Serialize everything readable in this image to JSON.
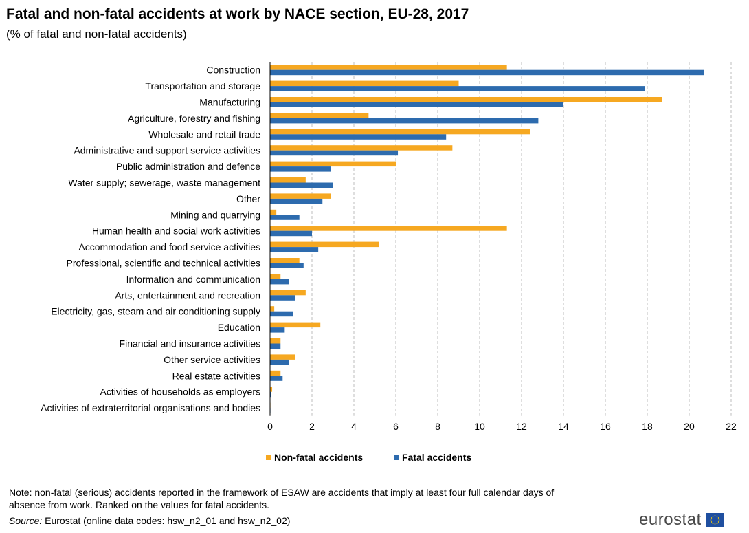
{
  "title": "Fatal and non-fatal accidents at work by NACE section, EU-28, 2017",
  "subtitle": "(% of fatal and non-fatal accidents)",
  "note": "Note: non-fatal (serious) accidents reported in the framework of ESAW are accidents that imply at least four full calendar days of absence from work. Ranked on the values for fatal accidents.",
  "source_label": "Source:",
  "source_text": " Eurostat (online data codes: hsw_n2_01 and hsw_n2_02)",
  "logo_text": "eurostat",
  "colors": {
    "nonfatal": "#F6A821",
    "fatal": "#2D6BAE",
    "grid": "#bdbdbd"
  },
  "chart_data": {
    "type": "bar",
    "orientation": "horizontal",
    "categories": [
      "Construction",
      "Transportation and storage",
      "Manufacturing",
      "Agriculture, forestry and fishing",
      "Wholesale and retail trade",
      "Administrative and support service activities",
      "Public administration and defence",
      "Water supply; sewerage, waste management",
      "Other",
      "Mining and quarrying",
      "Human health and social work activities",
      "Accommodation and food service activities",
      "Professional, scientific and technical activities",
      "Information and communication",
      "Arts, entertainment and recreation",
      "Electricity, gas, steam and air conditioning supply",
      "Education",
      "Financial and insurance activities",
      "Other service activities",
      "Real estate activities",
      "Activities of households as employers",
      "Activities of extraterritorial organisations and bodies"
    ],
    "series": [
      {
        "name": "Non-fatal accidents",
        "values": [
          11.3,
          9.0,
          18.7,
          4.7,
          12.4,
          8.7,
          6.0,
          1.7,
          2.9,
          0.3,
          11.3,
          5.2,
          1.4,
          0.5,
          1.7,
          0.2,
          2.4,
          0.5,
          1.2,
          0.5,
          0.1,
          0.02
        ]
      },
      {
        "name": "Fatal accidents",
        "values": [
          20.7,
          17.9,
          14.0,
          12.8,
          8.4,
          6.1,
          2.9,
          3.0,
          2.5,
          1.4,
          2.0,
          2.3,
          1.6,
          0.9,
          1.2,
          1.1,
          0.7,
          0.5,
          0.9,
          0.6,
          0.05,
          0.02
        ]
      }
    ],
    "xlim": [
      0,
      22
    ],
    "xticks": [
      0,
      2,
      4,
      6,
      8,
      10,
      12,
      14,
      16,
      18,
      20,
      22
    ],
    "grid": "vertical dashed",
    "legend_position": "bottom"
  }
}
